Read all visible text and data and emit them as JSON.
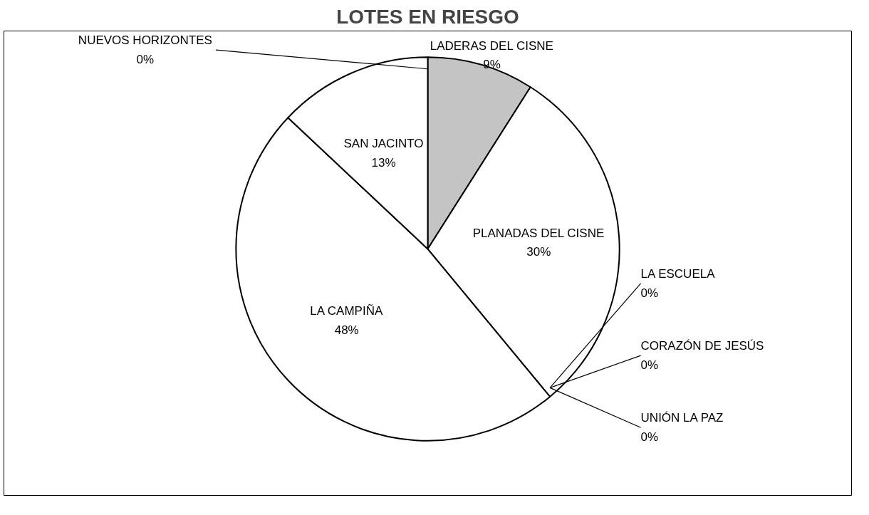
{
  "chart_data": {
    "type": "pie",
    "title": "LOTES EN RIESGO",
    "categories": [
      "LADERAS DEL CISNE",
      "PLANADAS DEL CISNE",
      "LA ESCUELA",
      "CORAZÓN DE JESÚS",
      "UNIÓN LA PAZ",
      "LA CAMPIÑA",
      "SAN JACINTO",
      "NUEVOS HORIZONTES"
    ],
    "values": [
      9,
      30,
      0,
      0,
      0,
      48,
      13,
      0
    ],
    "value_labels": [
      "9%",
      "30%",
      "0%",
      "0%",
      "0%",
      "48%",
      "13%",
      "0%"
    ],
    "colors": [
      "#c4c4c4",
      "#ffffff",
      "#ffffff",
      "#ffffff",
      "#ffffff",
      "#ffffff",
      "#ffffff",
      "#ffffff"
    ]
  }
}
